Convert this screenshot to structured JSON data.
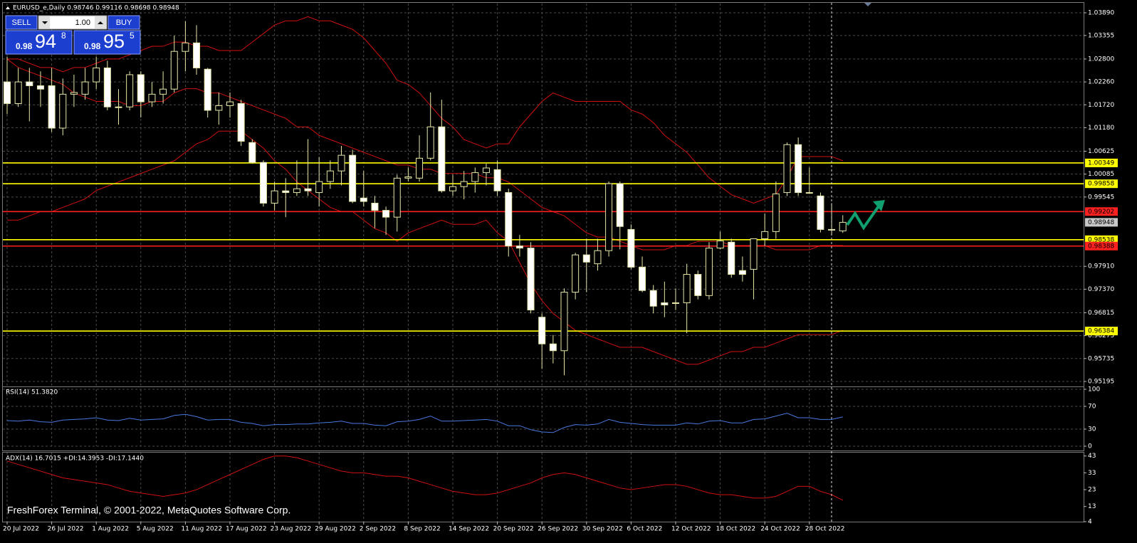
{
  "header": {
    "symbol_line": "EURUSD_e,Daily  0.98746 0.99116 0.98698 0.98948"
  },
  "trade_panel": {
    "sell": "SELL",
    "volume": "1.00",
    "buy": "BUY",
    "sell_prefix": "0.98",
    "sell_big": "94",
    "sell_sup": "8",
    "buy_prefix": "0.98",
    "buy_big": "95",
    "buy_sup": "5"
  },
  "footer": "FreshForex Terminal, © 2001-2022, MetaQuotes Software Corp.",
  "chart_data": [
    {
      "type": "candlestick",
      "categories": [
        "20 Jul 2022",
        null,
        null,
        null,
        "26 Jul 2022",
        null,
        null,
        null,
        "1 Aug 2022",
        null,
        null,
        null,
        "5 Aug 2022",
        null,
        null,
        null,
        "11 Aug 2022",
        null,
        null,
        null,
        "17 Aug 2022",
        null,
        null,
        null,
        "23 Aug 2022",
        null,
        null,
        null,
        "29 Aug 2022",
        null,
        null,
        null,
        "2 Sep 2022",
        null,
        null,
        null,
        "8 Sep 2022",
        null,
        null,
        null,
        "14 Sep 2022",
        null,
        null,
        null,
        "20 Sep 2022",
        null,
        null,
        null,
        "26 Sep 2022",
        null,
        null,
        null,
        "30 Sep 2022",
        null,
        null,
        null,
        "6 Oct 2022",
        null,
        null,
        null,
        "12 Oct 2022",
        null,
        null,
        null,
        "18 Oct 2022",
        null,
        null,
        null,
        "24 Oct 2022",
        null,
        null,
        null,
        "28 Oct 2022",
        null,
        null,
        null
      ],
      "open": [
        1.0226,
        1.0175,
        1.0226,
        1.0217,
        1.0217,
        1.0117,
        1.0197,
        1.0197,
        1.0226,
        1.0259,
        1.0167,
        1.0167,
        1.0243,
        1.0179,
        1.0197,
        1.0209,
        1.0298,
        1.0318,
        1.0256,
        1.0159,
        1.017,
        1.0175,
        1.0083,
        1.0036,
        0.994,
        0.9969,
        0.9965,
        0.9974,
        0.9965,
        0.9991,
        1.0016,
        1.0053,
        0.9952,
        0.994,
        0.9923,
        0.9907,
        0.9999,
        0.9999,
        1.0046,
        1.012,
        0.9969,
        0.9979,
        0.9991,
        1.0012,
        1.0019,
        0.9965,
        0.9839,
        0.9834,
        0.9671,
        0.9608,
        0.9592,
        0.973,
        0.9818,
        0.9797,
        0.9828,
        0.9986,
        0.9878,
        0.9789,
        0.9734,
        0.9705,
        0.9705,
        0.9705,
        0.9772,
        0.9722,
        0.9834,
        0.9848,
        0.9781,
        0.9784,
        0.9856,
        0.9873,
        0.9965,
        1.0078,
        0.9965,
        0.9957,
        0.9878,
        0.98746
      ],
      "high": [
        1.0285,
        1.0259,
        1.0259,
        1.0251,
        1.0259,
        1.0234,
        1.0243,
        1.0259,
        1.0285,
        1.0276,
        1.0209,
        1.0251,
        1.0251,
        1.0226,
        1.0251,
        1.0335,
        1.0369,
        1.036,
        1.0259,
        1.0201,
        1.0201,
        1.0184,
        1.0091,
        1.0041,
        0.9991,
        0.9999,
        1.0041,
        1.0091,
        1.0049,
        1.0041,
        1.0075,
        1.0066,
        1.0016,
        0.9957,
        0.9932,
        1.0007,
        1.0024,
        1.01,
        1.0201,
        1.0184,
        1.0007,
        1.0016,
        1.0024,
        1.0033,
        1.0041,
        0.9974,
        0.9865,
        0.9848,
        0.968,
        0.9629,
        0.9739,
        0.9823,
        0.9856,
        0.9856,
        0.9991,
        0.9991,
        0.989,
        0.9814,
        0.9747,
        0.9755,
        0.9739,
        0.9797,
        0.9781,
        0.9848,
        0.9873,
        0.9856,
        0.9814,
        0.9856,
        0.9915,
        0.9991,
        1.0083,
        1.0095,
        1.0024,
        0.9965,
        0.994,
        0.99116
      ],
      "low": [
        1.015,
        1.0167,
        1.0133,
        1.0167,
        1.0108,
        1.01,
        1.0167,
        1.0184,
        1.0209,
        1.0159,
        1.0125,
        1.0159,
        1.0142,
        1.0167,
        1.0175,
        1.0201,
        1.0251,
        1.0243,
        1.0142,
        1.0125,
        1.0142,
        1.0075,
        1.0033,
        0.9932,
        0.9923,
        0.9907,
        0.9957,
        0.9957,
        0.9932,
        0.9974,
        0.9982,
        0.994,
        0.9932,
        0.9881,
        0.9865,
        0.9873,
        0.9991,
        0.9991,
        1.0041,
        0.9965,
        0.9957,
        0.9949,
        0.9965,
        0.9982,
        0.9957,
        0.9814,
        0.9814,
        0.968,
        0.9549,
        0.9562,
        0.9534,
        0.9713,
        0.973,
        0.9781,
        0.9814,
        0.9831,
        0.9784,
        0.973,
        0.968,
        0.9671,
        0.9688,
        0.9633,
        0.9713,
        0.9713,
        0.9831,
        0.9764,
        0.9755,
        0.9713,
        0.9839,
        0.9856,
        0.9957,
        0.9957,
        0.9962,
        0.9871,
        0.9865,
        0.98698
      ],
      "close": [
        1.0175,
        1.0226,
        1.0217,
        1.0209,
        1.0117,
        1.0197,
        1.0201,
        1.0226,
        1.0259,
        1.0167,
        1.0167,
        1.0243,
        1.0179,
        1.0197,
        1.0209,
        1.0298,
        1.0318,
        1.0259,
        1.0159,
        1.017,
        1.0179,
        1.0086,
        1.0036,
        0.994,
        0.9969,
        0.9965,
        0.9974,
        0.9969,
        0.9991,
        1.0016,
        1.0053,
        0.9944,
        0.9944,
        0.9923,
        0.9907,
        0.9999,
        1.0002,
        1.0046,
        1.012,
        0.9969,
        0.9979,
        0.9991,
        1.0012,
        1.0023,
        0.9969,
        0.9839,
        0.9834,
        0.9688,
        0.9608,
        0.9592,
        0.973,
        0.9818,
        0.9801,
        0.9828,
        0.9986,
        0.9885,
        0.9789,
        0.9734,
        0.9697,
        0.97,
        0.9705,
        0.9772,
        0.9722,
        0.9834,
        0.9851,
        0.9772,
        0.9772,
        0.9856,
        0.9873,
        0.9962,
        1.0078,
        0.9965,
        0.9965,
        0.9878,
        0.9878,
        0.98948
      ],
      "bull_color": "#000000",
      "bear_color": "#ffffff",
      "wick_color": "#e6e6a8",
      "overlays": [
        {
          "color": "#d01010",
          "values": [
            1.028,
            1.028,
            1.027,
            1.026,
            1.026,
            1.025,
            1.026,
            1.026,
            1.027,
            1.028,
            1.028,
            1.029,
            1.03,
            1.031,
            1.031,
            1.032,
            1.032,
            1.031,
            1.031,
            1.03,
            1.03,
            1.03,
            1.032,
            1.034,
            1.036,
            1.037,
            1.037,
            1.038,
            1.037,
            1.037,
            1.036,
            1.035,
            1.033,
            1.03,
            1.027,
            1.023,
            1.022,
            1.02,
            1.017,
            1.014,
            1.012,
            1.009,
            1.008,
            1.007,
            1.008,
            1.008,
            1.012,
            1.015,
            1.018,
            1.02,
            1.019,
            1.018,
            1.018,
            1.018,
            1.018,
            1.018,
            1.016,
            1.015,
            1.013,
            1.01,
            1.008,
            1.006,
            1.003,
            1.0,
            0.998,
            0.996,
            0.995,
            0.994,
            0.995,
            0.996,
            1.0,
            1.005,
            1.005,
            1.005,
            1.005,
            1.004
          ]
        },
        {
          "color": "#d01010",
          "values": [
            1.028,
            1.026,
            1.025,
            1.024,
            1.023,
            1.022,
            1.02,
            1.019,
            1.018,
            1.018,
            1.018,
            1.017,
            1.017,
            1.018,
            1.018,
            1.02,
            1.021,
            1.021,
            1.02,
            1.02,
            1.019,
            1.018,
            1.017,
            1.016,
            1.015,
            1.014,
            1.012,
            1.012,
            1.01,
            1.009,
            1.008,
            1.007,
            1.006,
            1.005,
            1.004,
            1.003,
            1.003,
            1.002,
            1.002,
            1.001,
            1.001,
            1.001,
            1.001,
            1.0,
            1.0,
            0.999,
            0.997,
            0.995,
            0.993,
            0.992,
            0.991,
            0.989,
            0.987,
            0.986,
            0.986,
            0.985,
            0.984,
            0.983,
            0.983,
            0.983,
            0.984,
            0.984,
            0.985,
            0.985,
            0.985,
            0.984,
            0.984,
            0.984,
            0.984,
            0.983,
            0.983,
            0.983,
            0.983,
            0.984,
            0.984,
            0.984
          ]
        },
        {
          "color": "#d01010",
          "values": [
            0.99,
            0.99,
            0.991,
            0.992,
            0.992,
            0.993,
            0.994,
            0.995,
            0.997,
            0.998,
            0.999,
            1.0,
            1.001,
            1.002,
            1.003,
            1.004,
            1.006,
            1.008,
            1.009,
            1.011,
            1.011,
            1.011,
            1.009,
            1.007,
            1.004,
            1.002,
            0.999,
            0.997,
            0.995,
            0.993,
            0.992,
            0.992,
            0.99,
            0.988,
            0.987,
            0.985,
            0.987,
            0.988,
            0.989,
            0.99,
            0.989,
            0.989,
            0.989,
            0.99,
            0.987,
            0.985,
            0.98,
            0.975,
            0.971,
            0.968,
            0.966,
            0.964,
            0.963,
            0.962,
            0.961,
            0.96,
            0.96,
            0.96,
            0.959,
            0.958,
            0.957,
            0.956,
            0.956,
            0.957,
            0.958,
            0.959,
            0.959,
            0.96,
            0.96,
            0.961,
            0.962,
            0.963,
            0.963,
            0.963,
            0.963,
            0.964
          ]
        }
      ],
      "levels": [
        {
          "value": 1.00349,
          "color": "#ffff00"
        },
        {
          "value": 0.99858,
          "color": "#ffff00"
        },
        {
          "value": 0.99202,
          "color": "#ff2020"
        },
        {
          "value": 0.98538,
          "color": "#ffff00"
        },
        {
          "value": 0.98388,
          "color": "#ff2020"
        },
        {
          "value": 0.96384,
          "color": "#ffff00"
        }
      ],
      "current_price": 0.98948,
      "ylim": [
        0.95077,
        1.04108
      ],
      "yticks": [
        {
          "value": 1.0389,
          "label": "1.03890"
        },
        1.03355,
        {
          "value": 1.028,
          "label": "1.02800"
        },
        {
          "value": 1.0226,
          "label": "1.02260"
        },
        {
          "value": 1.0172,
          "label": "1.01720"
        },
        {
          "value": 1.0118,
          "label": "1.01180"
        },
        1.00625,
        1.00085,
        0.99545,
        {
          "value": 0.9791,
          "label": "0.97910"
        },
        {
          "value": 0.9737,
          "label": "0.97370"
        },
        0.96815,
        0.96275,
        0.95735,
        0.95195
      ],
      "grid": true
    },
    {
      "type": "line",
      "title": "RSI(14) 51.3820",
      "color": "#4a78e0",
      "values": [
        45,
        44,
        46,
        43,
        42,
        46,
        47,
        48,
        50,
        46,
        45,
        49,
        46,
        47,
        48,
        54,
        56,
        52,
        46,
        47,
        47,
        42,
        40,
        36,
        38,
        38,
        39,
        39,
        41,
        42,
        44,
        40,
        40,
        37,
        36,
        43,
        44,
        47,
        53,
        44,
        44,
        45,
        46,
        47,
        44,
        36,
        36,
        29,
        25,
        24,
        33,
        38,
        37,
        39,
        47,
        42,
        40,
        38,
        37,
        37,
        37,
        41,
        39,
        44,
        45,
        41,
        41,
        47,
        48,
        53,
        58,
        50,
        50,
        47,
        47,
        51.382
      ],
      "ylim": [
        0,
        100
      ],
      "yticks": [
        0,
        30,
        70,
        100
      ],
      "grid": true
    },
    {
      "type": "line",
      "title": "ADX(14) 16.7015 +DI:14.3953 -DI:17.1440",
      "color": "#d01010",
      "values": [
        40,
        38,
        36,
        34,
        32,
        30,
        29,
        28,
        27,
        26,
        24,
        22,
        21,
        20,
        19,
        20,
        21,
        23,
        26,
        29,
        32,
        35,
        38,
        41,
        43,
        43,
        42,
        40,
        38,
        36,
        34,
        33,
        33,
        32,
        31,
        31,
        30,
        28,
        26,
        24,
        22,
        21,
        20,
        20,
        21,
        23,
        25,
        27,
        30,
        32,
        33,
        32,
        30,
        28,
        26,
        24,
        23,
        24,
        25,
        26,
        26,
        25,
        23,
        21,
        20,
        20,
        19,
        18,
        18,
        19,
        22,
        25,
        25,
        22,
        20,
        16.7015
      ],
      "ylim": [
        4,
        45
      ],
      "yticks": [
        4,
        13,
        23,
        33,
        43
      ],
      "grid": false
    }
  ]
}
